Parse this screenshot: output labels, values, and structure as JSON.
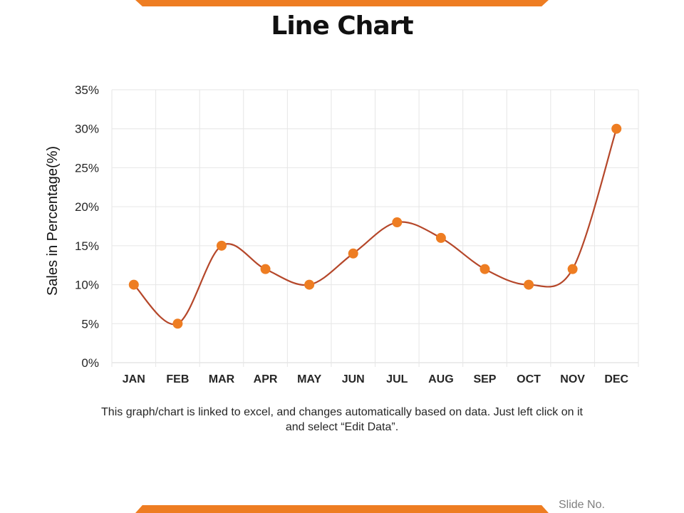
{
  "slide": {
    "title": "Line Chart",
    "caption": "This graph/chart is linked to excel, and changes automatically based on data. Just left click on it and select “Edit Data”.",
    "footer": "Slide No."
  },
  "colors": {
    "accent": "#ee7d22",
    "line": "#b5472a",
    "grid": "#e6e6e6"
  },
  "chart_data": {
    "type": "line",
    "title": "Line Chart",
    "xlabel": "",
    "ylabel": "Sales in Percentage(%)",
    "categories": [
      "JAN",
      "FEB",
      "MAR",
      "APR",
      "MAY",
      "JUN",
      "JUL",
      "AUG",
      "SEP",
      "OCT",
      "NOV",
      "DEC"
    ],
    "series": [
      {
        "values": [
          10,
          5,
          15,
          12,
          10,
          14,
          18,
          16,
          12,
          10,
          12,
          30
        ]
      }
    ],
    "ylim": [
      0,
      35
    ],
    "yticks": [
      "0%",
      "5%",
      "10%",
      "15%",
      "20%",
      "25%",
      "30%",
      "35%"
    ],
    "grid": true,
    "smooth": true,
    "legend": "none"
  }
}
